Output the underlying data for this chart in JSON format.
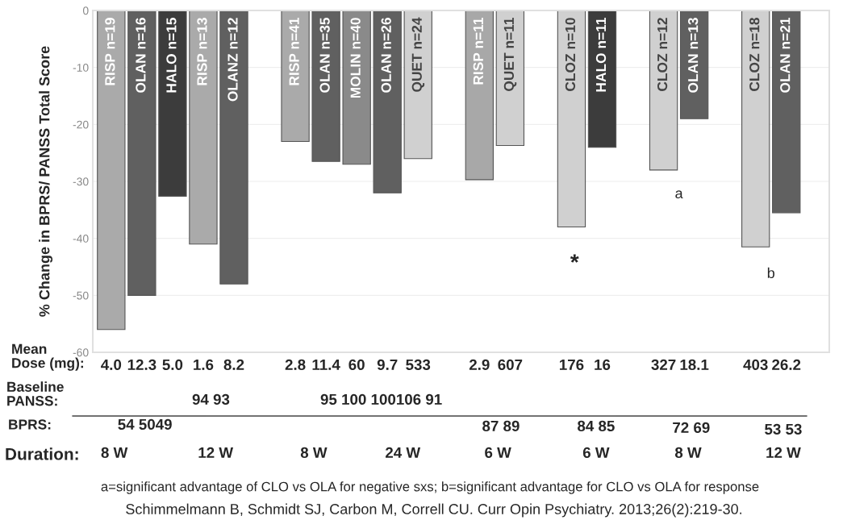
{
  "chart_data": {
    "type": "bar",
    "ylabel": "% Change in BPRS/ PANSS Total Score",
    "categories": [
      "RISP n=19",
      "OLAN n=16",
      "HALO n=15",
      "RISP n=13",
      "OLANZ n=12",
      null,
      "RISP n=41",
      "OLAN n=35",
      "MOLIN n=40",
      "OLAN n=26",
      "QUET n=24",
      null,
      "RISP n=11",
      "QUET n=11",
      null,
      "CLOZ n=10",
      "HALO n=11",
      null,
      "CLOZ n=12",
      "OLAN n=13",
      null,
      "CLOZ n=18",
      "OLAN n=21"
    ],
    "values": [
      -56,
      -50,
      -32.6,
      -41,
      -48,
      null,
      -23,
      -26.5,
      -27,
      -32,
      -26,
      null,
      -29.7,
      -23.7,
      null,
      -38,
      -24,
      null,
      -28,
      -19,
      null,
      -41.5,
      -35.5
    ],
    "colors": [
      "#aaaaaa",
      "#606060",
      "#3c3c3c",
      "#aaaaaa",
      "#606060",
      "#ffffff",
      "#aaaaaa",
      "#606060",
      "#8a8a8a",
      "#606060",
      "#d0d0d0",
      "#ffffff",
      "#a8a8a8",
      "#d0d0d0",
      "#ffffff",
      "#d0d0d0",
      "#3c3c3c",
      "#ffffff",
      "#d0d0d0",
      "#606060",
      "#ffffff",
      "#d0d0d0",
      "#606060"
    ],
    "ylim": [
      -60,
      0
    ],
    "yticks": [
      0,
      -10,
      -20,
      -30,
      -40,
      -50,
      -60
    ],
    "grid": "y",
    "annotations": [
      "*",
      "a",
      "b",
      "Mean\nDose (mg):",
      "4.0",
      "12.3",
      "5.0",
      "1.6",
      "8.2",
      "2.8",
      "11.4",
      "60",
      "9.7",
      "533",
      "2.9",
      "607",
      "176",
      "16",
      "327",
      "18.1",
      "403",
      "26.2",
      "Baseline\nPANSS:",
      "94 93",
      "95 100 100106 91",
      "BPRS:",
      "54 5049",
      "87 89",
      "84 85",
      "72 69",
      "53 53",
      "Duration:",
      "8 W",
      "12 W",
      "8 W",
      "24 W",
      "6 W",
      "6 W",
      "8 W",
      "12 W",
      "a=significant advantage of CLO vs OLA for negative sxs; b=significant advantage for CLO vs OLA for response",
      "Schimmelmann B, Schmidt SJ, Carbon M, Correll CU. Curr Opin Psychiatry. 2013;26(2):219-30."
    ]
  }
}
